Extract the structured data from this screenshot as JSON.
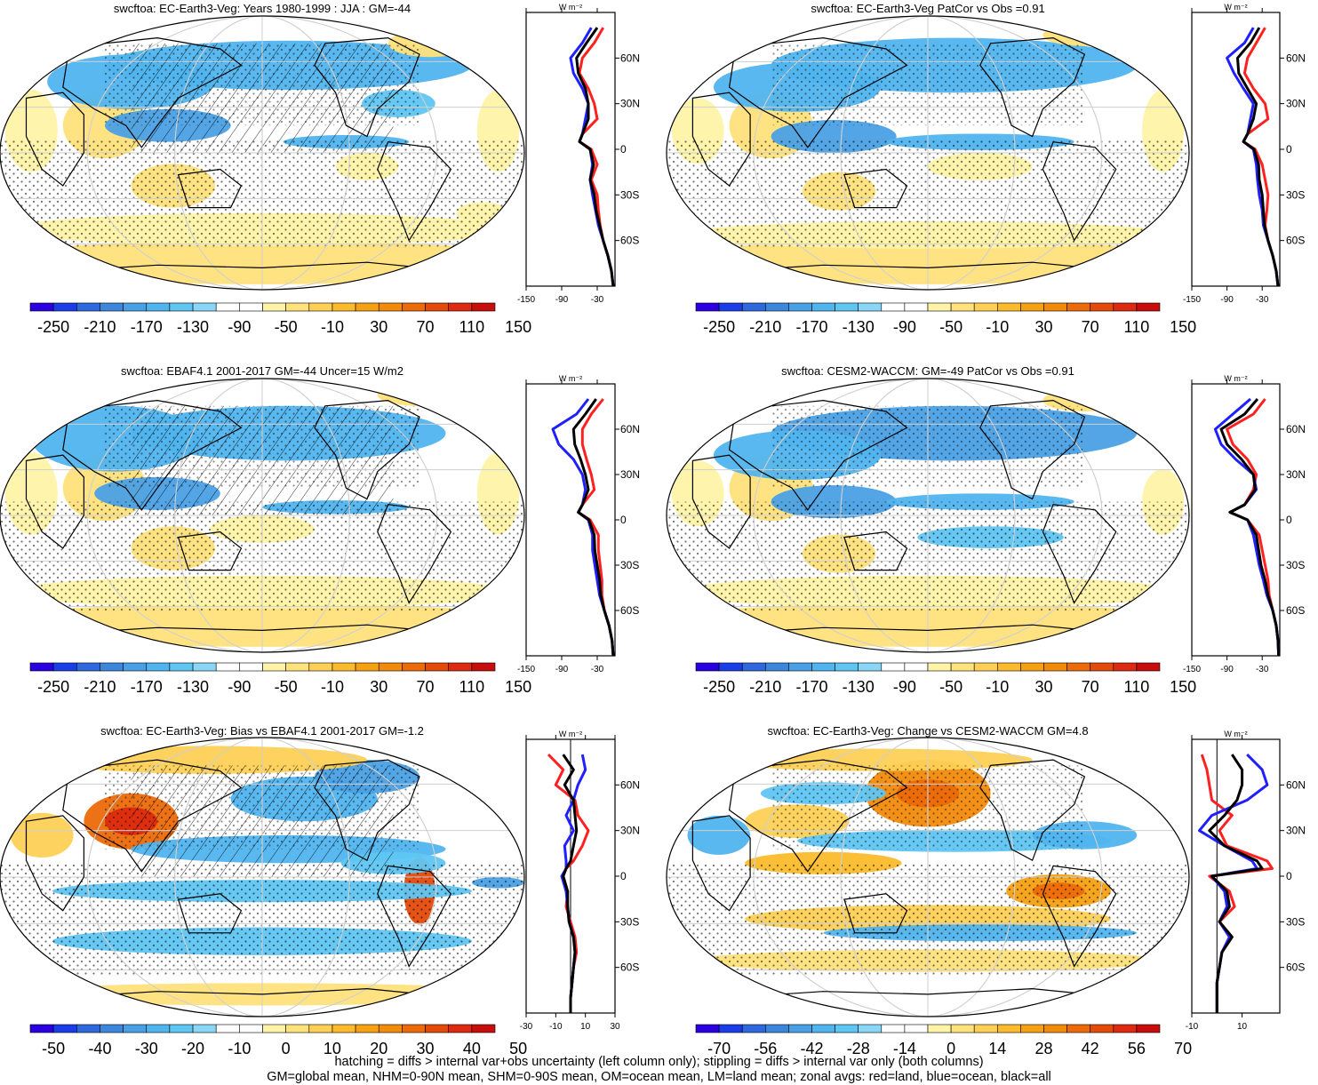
{
  "palette": {
    "red": "#ff2020",
    "blue": "#2020ff",
    "black": "#000000",
    "ocean_fill": "#ffffff",
    "stipple": "#000000"
  },
  "colormaps": {
    "mean": [
      "#2a00e0",
      "#1b3de8",
      "#2f67dc",
      "#3c86dc",
      "#4aa0e4",
      "#50b4ee",
      "#5fc6f2",
      "#8ad6f6",
      "#ffffff",
      "#ffffff",
      "#fff3a8",
      "#ffe27c",
      "#fdd055",
      "#fbbb2c",
      "#f6a013",
      "#f28a0c",
      "#ec6a0a",
      "#e44a0a",
      "#dd2a10",
      "#c80d0d"
    ],
    "bias": [
      "#2a00e0",
      "#1b3de8",
      "#2f67dc",
      "#3c86dc",
      "#4aa0e4",
      "#50b4ee",
      "#5fc6f2",
      "#8ad6f6",
      "#ffffff",
      "#ffffff",
      "#fff3a8",
      "#ffe27c",
      "#fdd055",
      "#fbbb2c",
      "#f6a013",
      "#f28a0c",
      "#ec6a0a",
      "#e44a0a",
      "#dd2a10",
      "#c80d0d"
    ]
  },
  "panels": [
    {
      "id": "model-mean",
      "title": "swcftoa: EC-Earth3-Veg: Years 1980-1999 : JJA : GM=-44",
      "colorbar_labels": [
        "-250",
        "-210",
        "-170",
        "-130",
        "-90",
        "-50",
        "-10",
        "30",
        "70",
        "110",
        "150"
      ],
      "cmap": "mean",
      "hatching": true,
      "pattern": "mean_a",
      "zonal": {
        "xlim": [
          -150,
          0
        ],
        "tick_labels": [
          "-150",
          "-90",
          "-30"
        ],
        "tick_values": [
          -150,
          -90,
          -30
        ],
        "unit": "W m⁻²"
      }
    },
    {
      "id": "model-patcor",
      "title": "swcftoa: EC-Earth3-Veg PatCor vs Obs =0.91",
      "colorbar_labels": [
        "-250",
        "-210",
        "-170",
        "-130",
        "-90",
        "-50",
        "-10",
        "30",
        "70",
        "110",
        "150"
      ],
      "cmap": "mean",
      "hatching": false,
      "pattern": "mean_b",
      "zonal": {
        "xlim": [
          -150,
          0
        ],
        "tick_labels": [
          "-150",
          "-90",
          "-30"
        ],
        "tick_values": [
          -150,
          -90,
          -30
        ],
        "unit": "W m⁻²"
      }
    },
    {
      "id": "obs-mean",
      "title": "swcftoa: EBAF4.1 2001-2017 GM=-44 Uncer=15 W/m2",
      "colorbar_labels": [
        "-250",
        "-210",
        "-170",
        "-130",
        "-90",
        "-50",
        "-10",
        "30",
        "70",
        "110",
        "150"
      ],
      "cmap": "mean",
      "hatching": true,
      "pattern": "mean_c",
      "zonal": {
        "xlim": [
          -150,
          0
        ],
        "tick_labels": [
          "-150",
          "-90",
          "-30"
        ],
        "tick_values": [
          -150,
          -90,
          -30
        ],
        "unit": "W m⁻²"
      }
    },
    {
      "id": "ref-model-mean",
      "title": "swcftoa: CESM2-WACCM: GM=-49 PatCor vs Obs =0.91",
      "colorbar_labels": [
        "-250",
        "-210",
        "-170",
        "-130",
        "-90",
        "-50",
        "-10",
        "30",
        "70",
        "110",
        "150"
      ],
      "cmap": "mean",
      "hatching": false,
      "pattern": "mean_d",
      "zonal": {
        "xlim": [
          -150,
          0
        ],
        "tick_labels": [
          "-150",
          "-90",
          "-30"
        ],
        "tick_values": [
          -150,
          -90,
          -30
        ],
        "unit": "W m⁻²"
      }
    },
    {
      "id": "bias",
      "title": "swcftoa: EC-Earth3-Veg: Bias vs EBAF4.1 2001-2017 GM=-1.2",
      "colorbar_labels": [
        "-50",
        "-40",
        "-30",
        "-20",
        "-10",
        "0",
        "10",
        "20",
        "30",
        "40",
        "50"
      ],
      "cmap": "bias",
      "hatching": true,
      "pattern": "bias",
      "zonal": {
        "xlim": [
          -30,
          30
        ],
        "tick_labels": [
          "-30",
          "-10",
          "10",
          "30"
        ],
        "tick_values": [
          -30,
          -10,
          10,
          30
        ],
        "unit": "W m⁻²"
      }
    },
    {
      "id": "change",
      "title": "swcftoa: EC-Earth3-Veg: Change vs CESM2-WACCM GM=4.8",
      "colorbar_labels": [
        "-70",
        "-56",
        "-42",
        "-28",
        "-14",
        "0",
        "14",
        "28",
        "42",
        "56",
        "70"
      ],
      "cmap": "bias",
      "hatching": false,
      "pattern": "change",
      "zonal": {
        "xlim": [
          -10,
          25
        ],
        "tick_labels": [
          "-10",
          "10"
        ],
        "tick_values": [
          -10,
          10
        ],
        "unit": "W m⁻²"
      }
    }
  ],
  "lat_ticks": [
    "60N",
    "30N",
    "0",
    "30S",
    "60S"
  ],
  "chart_data": [
    {
      "type": "line",
      "panel": "model-mean",
      "ylabel": "",
      "xlim": [
        -150,
        0
      ],
      "ylim": [
        -90,
        90
      ],
      "y": [
        80,
        70,
        60,
        50,
        40,
        30,
        20,
        10,
        5,
        0,
        -10,
        -20,
        -30,
        -40,
        -50,
        -60,
        -70,
        -80,
        -90
      ],
      "series": [
        {
          "color": "#ff2020",
          "values": [
            -20,
            -35,
            -55,
            -60,
            -45,
            -35,
            -30,
            -55,
            -60,
            -40,
            -30,
            -40,
            -30,
            -28,
            -25,
            -20,
            -12,
            -6,
            -3
          ]
        },
        {
          "color": "#2020ff",
          "values": [
            -40,
            -55,
            -75,
            -70,
            -55,
            -45,
            -50,
            -55,
            -60,
            -42,
            -38,
            -42,
            -38,
            -33,
            -28,
            -20,
            -12,
            -6,
            -3
          ]
        },
        {
          "color": "#000000",
          "values": [
            -30,
            -48,
            -65,
            -62,
            -50,
            -45,
            -45,
            -55,
            -60,
            -42,
            -36,
            -42,
            -35,
            -32,
            -26,
            -20,
            -12,
            -6,
            -3
          ]
        }
      ]
    },
    {
      "type": "line",
      "panel": "model-patcor",
      "xlim": [
        -150,
        0
      ],
      "ylim": [
        -90,
        90
      ],
      "y": [
        80,
        70,
        60,
        50,
        40,
        30,
        20,
        10,
        5,
        0,
        -10,
        -20,
        -30,
        -40,
        -50,
        -60,
        -70,
        -80,
        -90
      ],
      "series": [
        {
          "color": "#ff2020",
          "values": [
            -25,
            -40,
            -55,
            -60,
            -45,
            -25,
            -20,
            -55,
            -62,
            -42,
            -30,
            -25,
            -20,
            -22,
            -25,
            -20,
            -12,
            -6,
            -3
          ]
        },
        {
          "color": "#2020ff",
          "values": [
            -45,
            -60,
            -90,
            -78,
            -62,
            -45,
            -50,
            -55,
            -62,
            -45,
            -40,
            -38,
            -35,
            -30,
            -28,
            -20,
            -12,
            -6,
            -3
          ]
        },
        {
          "color": "#000000",
          "values": [
            -35,
            -50,
            -72,
            -70,
            -55,
            -40,
            -45,
            -55,
            -62,
            -44,
            -36,
            -35,
            -30,
            -28,
            -26,
            -20,
            -12,
            -6,
            -3
          ]
        }
      ]
    },
    {
      "type": "line",
      "panel": "obs-mean",
      "xlim": [
        -150,
        0
      ],
      "ylim": [
        -90,
        90
      ],
      "y": [
        80,
        70,
        60,
        50,
        40,
        30,
        20,
        10,
        5,
        0,
        -10,
        -20,
        -30,
        -40,
        -50,
        -60,
        -70,
        -80,
        -90
      ],
      "series": [
        {
          "color": "#ff2020",
          "values": [
            -20,
            -40,
            -55,
            -55,
            -48,
            -40,
            -35,
            -55,
            -62,
            -42,
            -28,
            -28,
            -25,
            -22,
            -22,
            -18,
            -10,
            -5,
            -3
          ]
        },
        {
          "color": "#2020ff",
          "values": [
            -45,
            -65,
            -105,
            -95,
            -70,
            -55,
            -50,
            -55,
            -62,
            -45,
            -38,
            -38,
            -34,
            -30,
            -26,
            -18,
            -10,
            -5,
            -3
          ]
        },
        {
          "color": "#000000",
          "values": [
            -32,
            -50,
            -70,
            -68,
            -58,
            -50,
            -45,
            -55,
            -62,
            -44,
            -35,
            -34,
            -30,
            -26,
            -24,
            -18,
            -10,
            -5,
            -3
          ]
        }
      ]
    },
    {
      "type": "line",
      "panel": "ref-model-mean",
      "xlim": [
        -150,
        0
      ],
      "ylim": [
        -90,
        90
      ],
      "y": [
        80,
        70,
        60,
        50,
        40,
        30,
        20,
        10,
        5,
        0,
        -10,
        -20,
        -30,
        -40,
        -50,
        -60,
        -70,
        -80,
        -90
      ],
      "series": [
        {
          "color": "#ff2020",
          "values": [
            -25,
            -45,
            -90,
            -80,
            -55,
            -40,
            -45,
            -60,
            -85,
            -55,
            -35,
            -30,
            -25,
            -20,
            -18,
            -12,
            -6,
            -3,
            -2
          ]
        },
        {
          "color": "#2020ff",
          "values": [
            -50,
            -80,
            -110,
            -100,
            -75,
            -45,
            -40,
            -60,
            -85,
            -55,
            -45,
            -40,
            -35,
            -28,
            -22,
            -12,
            -6,
            -3,
            -2
          ]
        },
        {
          "color": "#000000",
          "values": [
            -38,
            -60,
            -100,
            -90,
            -65,
            -45,
            -42,
            -60,
            -85,
            -55,
            -40,
            -36,
            -32,
            -25,
            -20,
            -12,
            -6,
            -3,
            -2
          ]
        }
      ]
    },
    {
      "type": "line",
      "panel": "bias",
      "xlim": [
        -30,
        30
      ],
      "ylim": [
        -90,
        90
      ],
      "y": [
        80,
        70,
        60,
        50,
        40,
        30,
        20,
        10,
        5,
        0,
        -10,
        -20,
        -30,
        -40,
        -50,
        -60,
        -70,
        -80,
        -90
      ],
      "series": [
        {
          "color": "#ff2020",
          "values": [
            -15,
            -5,
            -10,
            3,
            5,
            12,
            8,
            2,
            -3,
            -5,
            -2,
            -3,
            0,
            3,
            4,
            2,
            1,
            0,
            0
          ]
        },
        {
          "color": "#2020ff",
          "values": [
            8,
            10,
            5,
            2,
            -3,
            2,
            -4,
            -3,
            -3,
            -6,
            -3,
            -2,
            -1,
            2,
            3,
            2,
            1,
            0,
            0
          ]
        },
        {
          "color": "#000000",
          "values": [
            -5,
            2,
            -4,
            2,
            3,
            4,
            2,
            0,
            -3,
            -5,
            -2,
            -2,
            -1,
            2,
            3,
            2,
            1,
            0,
            0
          ]
        }
      ]
    },
    {
      "type": "line",
      "panel": "change",
      "xlim": [
        -10,
        25
      ],
      "ylim": [
        -90,
        90
      ],
      "y": [
        80,
        70,
        60,
        50,
        40,
        30,
        20,
        10,
        5,
        0,
        -10,
        -20,
        -30,
        -40,
        -50,
        -60,
        -70,
        -80,
        -90
      ],
      "series": [
        {
          "color": "#ff2020",
          "values": [
            -6,
            -4,
            -3,
            -2,
            6,
            1,
            4,
            20,
            22,
            -3,
            5,
            7,
            1,
            6,
            2,
            1,
            0,
            0,
            0
          ]
        },
        {
          "color": "#2020ff",
          "values": [
            12,
            18,
            20,
            12,
            -2,
            -7,
            3,
            14,
            16,
            -2,
            3,
            4,
            1,
            5,
            2,
            1,
            0,
            0,
            0
          ]
        },
        {
          "color": "#000000",
          "values": [
            6,
            10,
            10,
            8,
            3,
            -3,
            3,
            16,
            18,
            -2,
            4,
            5,
            1,
            6,
            2,
            1,
            0,
            0,
            0
          ]
        }
      ]
    }
  ],
  "footer": {
    "line1": "hatching = diffs > internal var+obs uncertainty (left column only); stippling = diffs > internal var only (both columns)",
    "line2": "GM=global mean, NHM=0-90N mean, SHM=0-90S mean, OM=ocean mean, LM=land mean; zonal avgs: red=land, blue=ocean, black=all"
  }
}
